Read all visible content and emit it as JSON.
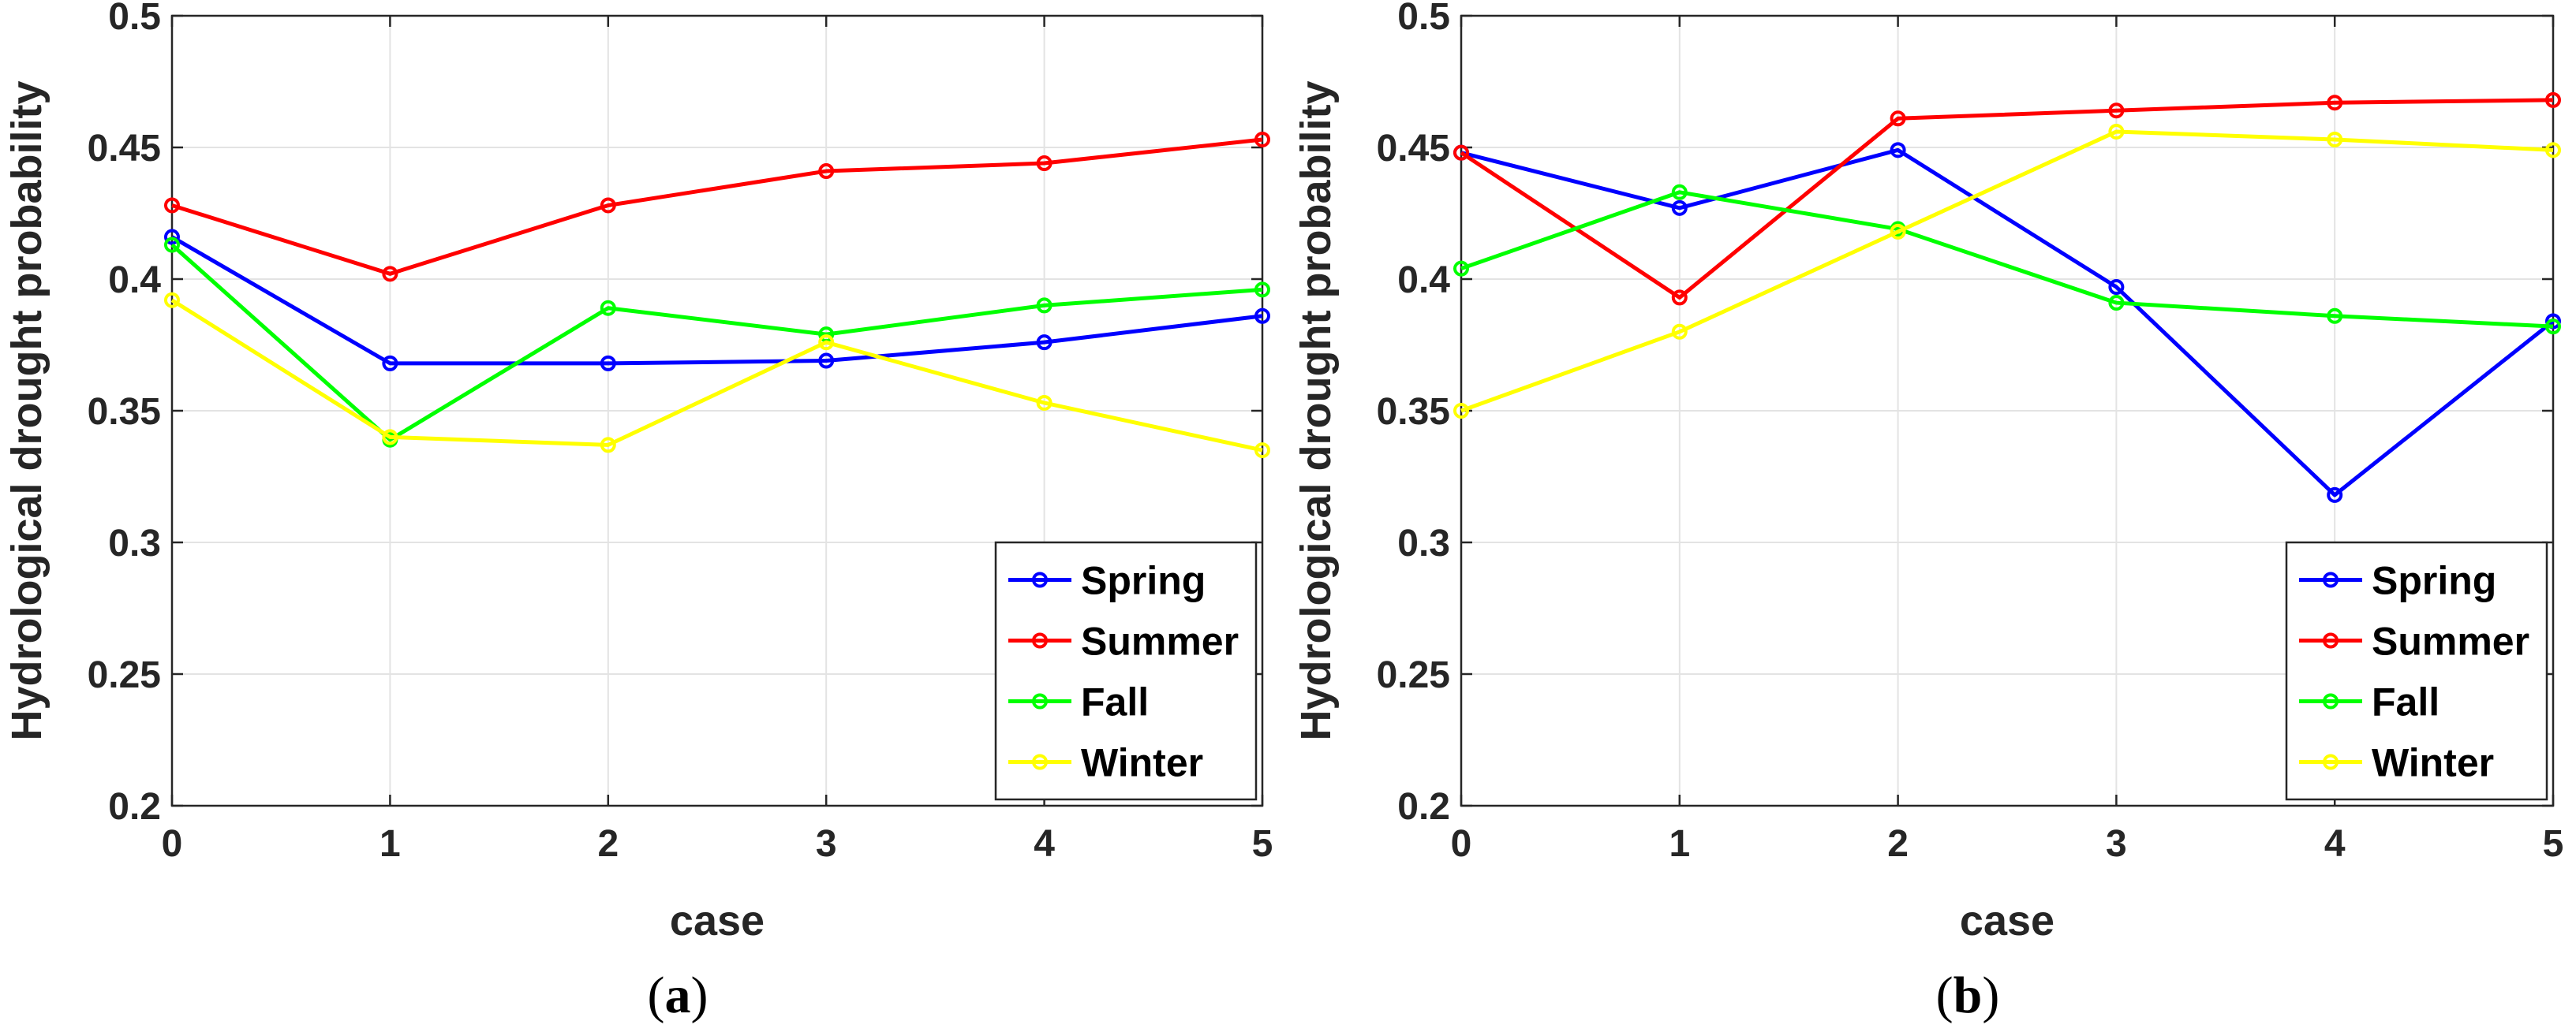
{
  "chart_data": [
    {
      "type": "line",
      "caption": "(a)",
      "caption_parts": {
        "open": "(",
        "letter": "a",
        "close": ")"
      },
      "xlabel": "case",
      "ylabel": "Hydrological drought probability",
      "xlim": [
        0,
        5
      ],
      "ylim": [
        0.2,
        0.5
      ],
      "x": [
        0,
        1,
        2,
        3,
        4,
        5
      ],
      "x_ticks": [
        "0",
        "1",
        "2",
        "3",
        "4",
        "5"
      ],
      "y_ticks": [
        "0.2",
        "0.25",
        "0.3",
        "0.35",
        "0.4",
        "0.45",
        "0.5"
      ],
      "grid": true,
      "legend_position": "bottom-right",
      "series": [
        {
          "name": "Spring",
          "color": "#0000ff",
          "values": [
            0.416,
            0.368,
            0.368,
            0.369,
            0.376,
            0.386
          ]
        },
        {
          "name": "Summer",
          "color": "#ff0000",
          "values": [
            0.428,
            0.402,
            0.428,
            0.441,
            0.444,
            0.453
          ]
        },
        {
          "name": "Fall",
          "color": "#00ff00",
          "values": [
            0.413,
            0.339,
            0.389,
            0.379,
            0.39,
            0.396
          ]
        },
        {
          "name": "Winter",
          "color": "#ffff00",
          "values": [
            0.392,
            0.34,
            0.337,
            0.376,
            0.353,
            0.335
          ]
        }
      ]
    },
    {
      "type": "line",
      "caption": "(b)",
      "caption_parts": {
        "open": "(",
        "letter": "b",
        "close": ")"
      },
      "xlabel": "case",
      "ylabel": "Hydrological drought probability",
      "xlim": [
        0,
        5
      ],
      "ylim": [
        0.2,
        0.5
      ],
      "x": [
        0,
        1,
        2,
        3,
        4,
        5
      ],
      "x_ticks": [
        "0",
        "1",
        "2",
        "3",
        "4",
        "5"
      ],
      "y_ticks": [
        "0.2",
        "0.25",
        "0.3",
        "0.35",
        "0.4",
        "0.45",
        "0.5"
      ],
      "grid": true,
      "legend_position": "bottom-right",
      "series": [
        {
          "name": "Spring",
          "color": "#0000ff",
          "values": [
            0.448,
            0.427,
            0.449,
            0.397,
            0.318,
            0.384
          ]
        },
        {
          "name": "Summer",
          "color": "#ff0000",
          "values": [
            0.448,
            0.393,
            0.461,
            0.464,
            0.467,
            0.468
          ]
        },
        {
          "name": "Fall",
          "color": "#00ff00",
          "values": [
            0.404,
            0.433,
            0.419,
            0.391,
            0.386,
            0.382
          ]
        },
        {
          "name": "Winter",
          "color": "#ffff00",
          "values": [
            0.35,
            0.38,
            0.418,
            0.456,
            0.453,
            0.449
          ]
        }
      ]
    }
  ]
}
